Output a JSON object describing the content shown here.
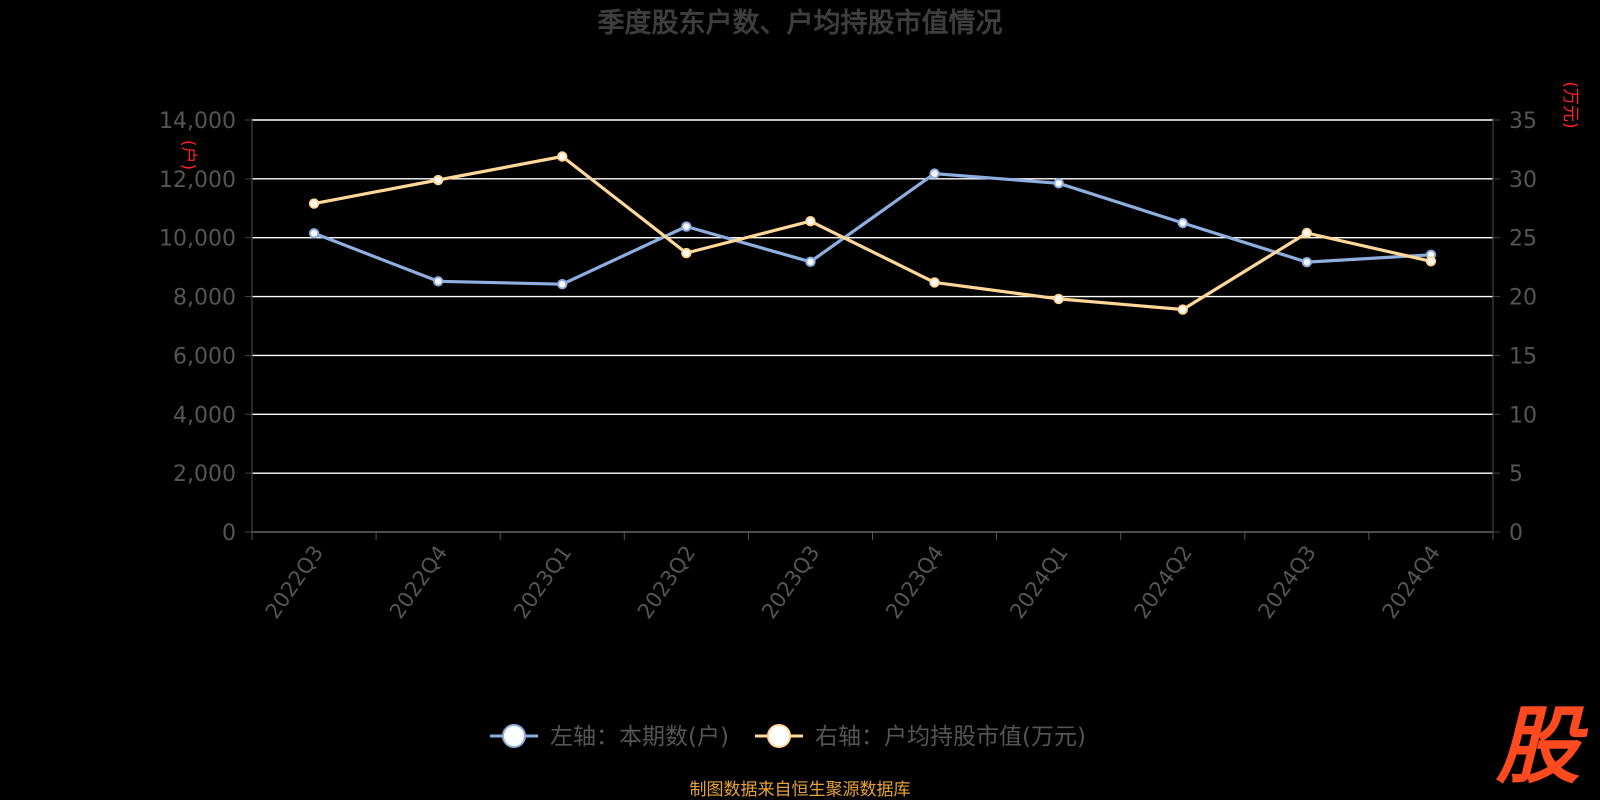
{
  "chart_data": {
    "type": "line",
    "title": "季度股东户数、户均持股市值情况",
    "categories": [
      "2022Q3",
      "2022Q4",
      "2023Q1",
      "2023Q2",
      "2023Q3",
      "2023Q4",
      "2024Q1",
      "2024Q2",
      "2024Q3",
      "2024Q4"
    ],
    "y_left": {
      "unit": "(户)",
      "ylim": [
        0,
        14000
      ],
      "ticks": [
        "0",
        "2,000",
        "4,000",
        "6,000",
        "8,000",
        "10,000",
        "12,000",
        "14,000"
      ]
    },
    "y_right": {
      "unit": "(万元)",
      "ylim": [
        0,
        35
      ],
      "ticks": [
        "0",
        "5",
        "10",
        "15",
        "20",
        "25",
        "30",
        "35"
      ]
    },
    "series": [
      {
        "name": "左轴：本期数(户)",
        "axis": "left",
        "color": "#8eaee0",
        "values": [
          10150,
          8520,
          8420,
          10380,
          9180,
          12180,
          11850,
          10500,
          9170,
          9420
        ]
      },
      {
        "name": "右轴：户均持股市值(万元)",
        "axis": "right",
        "color": "#ffd899",
        "values": [
          27.9,
          29.9,
          31.9,
          23.7,
          26.4,
          21.2,
          19.8,
          18.9,
          25.4,
          23.0
        ]
      }
    ],
    "grid": true,
    "legend_position": "bottom-center"
  },
  "source_note": "制图数据来自恒生聚源数据库",
  "logo": {
    "glyph": "股",
    "color": "#ff4a20"
  }
}
